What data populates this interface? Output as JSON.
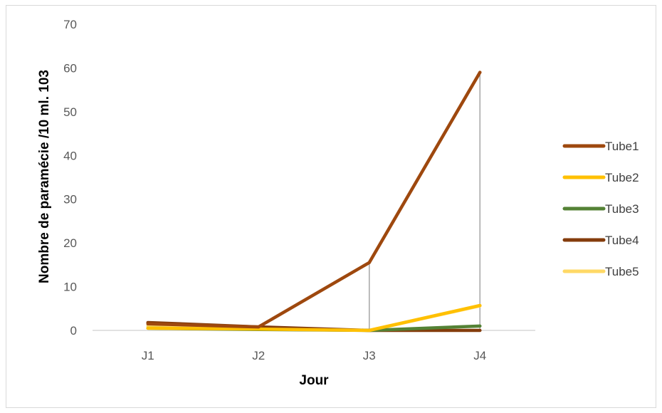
{
  "chart_data": {
    "type": "line",
    "title": "",
    "xlabel": "Jour",
    "ylabel": "Nombre de paramécie /10 ml. 103",
    "categories": [
      "J1",
      "J2",
      "J3",
      "J4"
    ],
    "ylim": [
      0,
      70
    ],
    "yticks": [
      "0",
      "10",
      "20",
      "30",
      "40",
      "50",
      "60",
      "70"
    ],
    "grid": false,
    "legend_position": "right",
    "drop_lines": true,
    "series": [
      {
        "name": "Tube1",
        "color": "#9E480E",
        "values": [
          1.5,
          0.8,
          15.5,
          59
        ]
      },
      {
        "name": "Tube2",
        "color": "#FFC000",
        "values": [
          0.5,
          0.3,
          0,
          5.7
        ]
      },
      {
        "name": "Tube3",
        "color": "#548235",
        "values": [
          0.5,
          0.2,
          0,
          1
        ]
      },
      {
        "name": "Tube4",
        "color": "#843C0C",
        "values": [
          1.8,
          0.8,
          0,
          0
        ]
      },
      {
        "name": "Tube5",
        "color": "#FFD966",
        "values": [
          1.0,
          0.5,
          0,
          5.6
        ]
      }
    ]
  }
}
